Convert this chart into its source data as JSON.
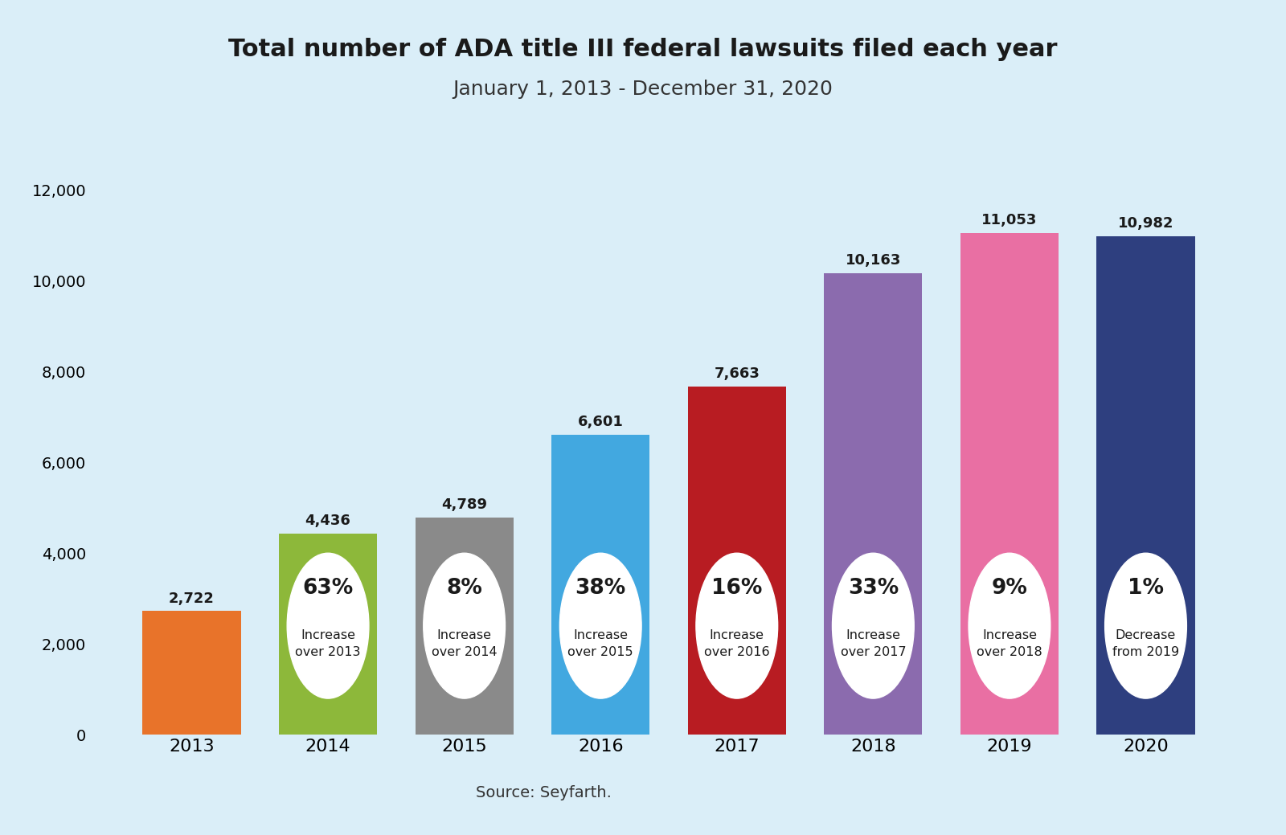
{
  "years": [
    "2013",
    "2014",
    "2015",
    "2016",
    "2017",
    "2018",
    "2019",
    "2020"
  ],
  "values": [
    2722,
    4436,
    4789,
    6601,
    7663,
    10163,
    11053,
    10982
  ],
  "bar_colors": [
    "#E8732A",
    "#8DB83A",
    "#8A8A8A",
    "#42A8E0",
    "#B81C22",
    "#8B6BAE",
    "#E96FA3",
    "#2E3F7F"
  ],
  "title": "Total number of ADA title III federal lawsuits filed each year",
  "subtitle": "January 1, 2013 - December 31, 2020",
  "source": "Source: Seyfarth.",
  "background_color": "#DAEEF8",
  "ylim": [
    0,
    12500
  ],
  "yticks": [
    0,
    2000,
    4000,
    6000,
    8000,
    10000,
    12000
  ],
  "badge_pct": [
    "",
    "63%",
    "8%",
    "38%",
    "16%",
    "33%",
    "9%",
    "1%"
  ],
  "badge_sub": [
    "",
    "Increase\nover 2013",
    "Increase\nover 2014",
    "Increase\nover 2015",
    "Increase\nover 2016",
    "Increase\nover 2017",
    "Increase\nover 2018",
    "Decrease\nfrom 2019"
  ]
}
